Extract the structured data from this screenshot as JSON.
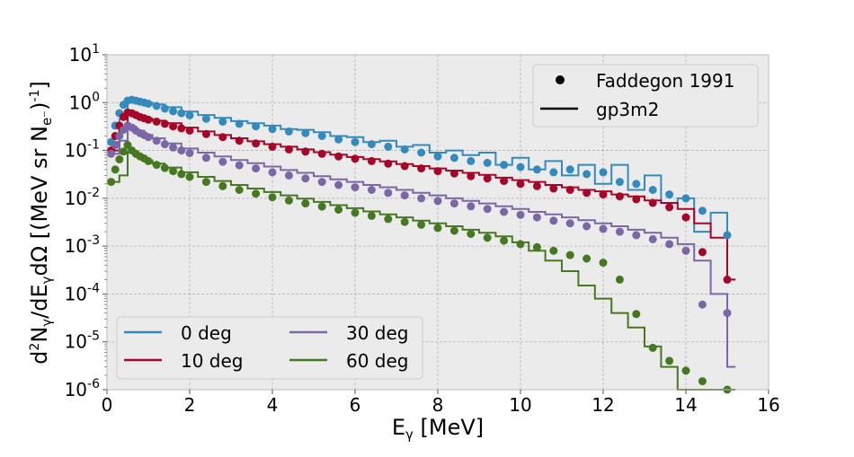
{
  "chart_data": {
    "type": "scatter",
    "xlabel": "E",
    "xlabel_sub": "γ",
    "xlabel_unit": " [MeV]",
    "ylabel_parts": [
      "d",
      "2",
      "N",
      "γ",
      "/dE",
      "γ",
      "dΩ  [(MeV sr N",
      "e⁻",
      ")",
      "-1",
      "]"
    ],
    "xlim": [
      0,
      16
    ],
    "ylim_log10": [
      -6,
      1
    ],
    "log_y": true,
    "grid": true,
    "x_ticks": [
      "0",
      "2",
      "4",
      "6",
      "8",
      "10",
      "12",
      "14",
      "16"
    ],
    "y_tick_base": "10",
    "y_tick_exponents": [
      "-6",
      "-5",
      "-4",
      "-3",
      "-2",
      "-1",
      "0",
      "1"
    ],
    "style_legend": {
      "placement": "top-right",
      "entries": [
        {
          "label": "Faddegon 1991",
          "marker": "dot"
        },
        {
          "label": "gp3m2",
          "marker": "line"
        }
      ]
    },
    "series_legend": {
      "placement": "bottom-left",
      "columns": 2,
      "entries": [
        "0 deg",
        "10 deg",
        "30 deg",
        "60 deg"
      ]
    },
    "series": [
      {
        "name": "0 deg",
        "color": "#348ABD",
        "measured": {
          "x": [
            0.1,
            0.2,
            0.3,
            0.4,
            0.5,
            0.6,
            0.7,
            0.8,
            0.9,
            1.0,
            1.2,
            1.4,
            1.6,
            1.8,
            2.0,
            2.4,
            2.8,
            3.2,
            3.6,
            4.0,
            4.4,
            4.8,
            5.2,
            5.6,
            6.0,
            6.4,
            6.8,
            7.2,
            7.6,
            8.0,
            8.4,
            8.8,
            9.2,
            9.6,
            10.0,
            10.4,
            10.8,
            11.2,
            11.6,
            12.0,
            12.4,
            12.8,
            13.2,
            13.6,
            14.0,
            14.4,
            15.0
          ],
          "y": [
            0.15,
            0.33,
            0.6,
            0.9,
            1.1,
            1.15,
            1.1,
            1.05,
            1.0,
            0.95,
            0.85,
            0.75,
            0.66,
            0.6,
            0.54,
            0.46,
            0.4,
            0.36,
            0.32,
            0.28,
            0.25,
            0.23,
            0.2,
            0.17,
            0.15,
            0.135,
            0.12,
            0.105,
            0.09,
            0.075,
            0.07,
            0.06,
            0.055,
            0.05,
            0.045,
            0.04,
            0.035,
            0.04,
            0.032,
            0.035,
            0.022,
            0.02,
            0.015,
            0.012,
            0.01,
            0.0055,
            0.0017
          ]
        },
        "simulated": {
          "x": [
            0.1,
            0.3,
            0.5,
            0.7,
            0.9,
            1.1,
            1.4,
            1.8,
            2.2,
            2.6,
            3.0,
            3.4,
            3.8,
            4.2,
            4.6,
            5.0,
            5.4,
            5.8,
            6.2,
            6.6,
            7.0,
            7.4,
            7.8,
            8.2,
            8.6,
            9.0,
            9.4,
            9.8,
            10.2,
            10.6,
            11.0,
            11.4,
            11.8,
            12.2,
            12.6,
            13.0,
            13.4,
            13.8,
            14.2,
            14.6,
            15.0
          ],
          "y": [
            0.15,
            0.45,
            1.15,
            1.1,
            1.0,
            0.92,
            0.8,
            0.65,
            0.55,
            0.48,
            0.41,
            0.37,
            0.33,
            0.28,
            0.27,
            0.24,
            0.2,
            0.19,
            0.15,
            0.16,
            0.12,
            0.13,
            0.09,
            0.1,
            0.08,
            0.09,
            0.05,
            0.07,
            0.04,
            0.06,
            0.03,
            0.05,
            0.02,
            0.05,
            0.015,
            0.03,
            0.008,
            0.01,
            0.002,
            0.005,
            0.0002
          ]
        }
      },
      {
        "name": "10 deg",
        "color": "#A60628",
        "measured": {
          "x": [
            0.1,
            0.2,
            0.3,
            0.4,
            0.5,
            0.6,
            0.7,
            0.8,
            0.9,
            1.0,
            1.2,
            1.4,
            1.6,
            1.8,
            2.0,
            2.4,
            2.8,
            3.2,
            3.6,
            4.0,
            4.4,
            4.8,
            5.2,
            5.6,
            6.0,
            6.4,
            6.8,
            7.2,
            7.6,
            8.0,
            8.4,
            8.8,
            9.2,
            9.6,
            10.0,
            10.4,
            10.8,
            11.2,
            11.6,
            12.0,
            12.4,
            12.8,
            13.2,
            13.6,
            14.0,
            14.4,
            15.0
          ],
          "y": [
            0.1,
            0.2,
            0.33,
            0.5,
            0.62,
            0.6,
            0.55,
            0.5,
            0.47,
            0.44,
            0.4,
            0.36,
            0.32,
            0.29,
            0.26,
            0.22,
            0.19,
            0.16,
            0.14,
            0.12,
            0.105,
            0.095,
            0.085,
            0.075,
            0.067,
            0.06,
            0.053,
            0.047,
            0.042,
            0.037,
            0.033,
            0.029,
            0.026,
            0.023,
            0.02,
            0.018,
            0.016,
            0.015,
            0.013,
            0.012,
            0.011,
            0.0095,
            0.008,
            0.0065,
            0.004,
            0.00075,
            0.0002
          ]
        },
        "simulated": {
          "x": [
            0.1,
            0.3,
            0.5,
            0.7,
            0.9,
            1.1,
            1.4,
            1.8,
            2.2,
            2.6,
            3.0,
            3.4,
            3.8,
            4.2,
            4.6,
            5.0,
            5.4,
            5.8,
            6.2,
            6.6,
            7.0,
            7.4,
            7.8,
            8.2,
            8.6,
            9.0,
            9.4,
            9.8,
            10.2,
            10.6,
            11.0,
            11.4,
            11.8,
            12.2,
            12.6,
            13.0,
            13.4,
            13.8,
            14.2,
            14.6,
            15.0
          ],
          "y": [
            0.1,
            0.3,
            0.6,
            0.52,
            0.46,
            0.42,
            0.37,
            0.3,
            0.25,
            0.21,
            0.18,
            0.155,
            0.135,
            0.12,
            0.105,
            0.092,
            0.082,
            0.073,
            0.066,
            0.059,
            0.052,
            0.047,
            0.042,
            0.038,
            0.034,
            0.031,
            0.027,
            0.024,
            0.022,
            0.019,
            0.017,
            0.015,
            0.014,
            0.012,
            0.011,
            0.009,
            0.008,
            0.006,
            0.003,
            0.0015,
            0.0002
          ]
        }
      },
      {
        "name": "30 deg",
        "color": "#7A68A6",
        "measured": {
          "x": [
            0.1,
            0.2,
            0.3,
            0.4,
            0.5,
            0.6,
            0.7,
            0.8,
            0.9,
            1.0,
            1.2,
            1.4,
            1.6,
            1.8,
            2.0,
            2.4,
            2.8,
            3.2,
            3.6,
            4.0,
            4.4,
            4.8,
            5.2,
            5.6,
            6.0,
            6.4,
            6.8,
            7.2,
            7.6,
            8.0,
            8.4,
            8.8,
            9.2,
            9.6,
            10.0,
            10.4,
            10.8,
            11.2,
            11.6,
            12.0,
            12.4,
            12.8,
            13.2,
            13.6,
            14.0,
            14.4,
            15.0
          ],
          "y": [
            0.085,
            0.13,
            0.2,
            0.27,
            0.33,
            0.3,
            0.26,
            0.23,
            0.21,
            0.19,
            0.16,
            0.135,
            0.115,
            0.1,
            0.088,
            0.07,
            0.058,
            0.049,
            0.042,
            0.035,
            0.03,
            0.026,
            0.022,
            0.019,
            0.017,
            0.015,
            0.013,
            0.0115,
            0.01,
            0.0088,
            0.0078,
            0.0068,
            0.006,
            0.0052,
            0.0045,
            0.004,
            0.0034,
            0.003,
            0.0026,
            0.0023,
            0.002,
            0.0017,
            0.0014,
            0.0011,
            0.0008,
            6e-05,
            4e-05
          ]
        },
        "simulated": {
          "x": [
            0.1,
            0.3,
            0.5,
            0.7,
            0.9,
            1.1,
            1.4,
            1.8,
            2.2,
            2.6,
            3.0,
            3.4,
            3.8,
            4.2,
            4.6,
            5.0,
            5.4,
            5.8,
            6.2,
            6.6,
            7.0,
            7.4,
            7.8,
            8.2,
            8.6,
            9.0,
            9.4,
            9.8,
            10.2,
            10.6,
            11.0,
            11.4,
            11.8,
            12.2,
            12.6,
            13.0,
            13.4,
            13.8,
            14.2,
            14.6,
            15.0
          ],
          "y": [
            0.085,
            0.16,
            0.32,
            0.26,
            0.21,
            0.18,
            0.14,
            0.11,
            0.09,
            0.075,
            0.063,
            0.054,
            0.046,
            0.039,
            0.034,
            0.029,
            0.025,
            0.022,
            0.019,
            0.017,
            0.015,
            0.013,
            0.0115,
            0.01,
            0.0088,
            0.0078,
            0.0068,
            0.006,
            0.0052,
            0.0046,
            0.004,
            0.0035,
            0.003,
            0.0026,
            0.0022,
            0.0019,
            0.0015,
            0.0011,
            0.0005,
            0.0001,
            3e-06
          ]
        }
      },
      {
        "name": "60 deg",
        "color": "#467821",
        "measured": {
          "x": [
            0.1,
            0.2,
            0.3,
            0.4,
            0.5,
            0.6,
            0.7,
            0.8,
            0.9,
            1.0,
            1.2,
            1.4,
            1.6,
            1.8,
            2.0,
            2.4,
            2.8,
            3.2,
            3.6,
            4.0,
            4.4,
            4.8,
            5.2,
            5.6,
            6.0,
            6.4,
            6.8,
            7.2,
            7.6,
            8.0,
            8.4,
            8.8,
            9.2,
            9.6,
            10.0,
            10.4,
            10.8,
            11.2,
            11.6,
            12.0,
            12.4,
            12.8,
            13.2,
            13.6,
            14.0,
            14.4,
            15.0
          ],
          "y": [
            0.022,
            0.04,
            0.065,
            0.095,
            0.13,
            0.1,
            0.085,
            0.075,
            0.068,
            0.06,
            0.05,
            0.043,
            0.037,
            0.032,
            0.028,
            0.022,
            0.018,
            0.015,
            0.0125,
            0.0105,
            0.009,
            0.0078,
            0.0067,
            0.0058,
            0.005,
            0.0043,
            0.0037,
            0.0032,
            0.0028,
            0.0024,
            0.0021,
            0.0018,
            0.0015,
            0.0013,
            0.0011,
            0.00095,
            0.0008,
            0.00065,
            0.00055,
            0.00045,
            0.0002,
            3.8e-05,
            7.5e-06,
            4e-06,
            2.5e-06,
            1.5e-06,
            1e-06
          ]
        },
        "simulated": {
          "x": [
            0.1,
            0.3,
            0.5,
            0.7,
            0.9,
            1.1,
            1.4,
            1.8,
            2.2,
            2.6,
            3.0,
            3.4,
            3.8,
            4.2,
            4.6,
            5.0,
            5.4,
            5.8,
            6.2,
            6.6,
            7.0,
            7.4,
            7.8,
            8.2,
            8.6,
            9.0,
            9.4,
            9.8,
            10.2,
            10.6,
            11.0,
            11.4,
            11.8,
            12.2,
            12.6,
            13.0,
            13.4,
            13.8,
            14.2,
            14.6,
            15.0
          ],
          "y": [
            0.022,
            0.03,
            0.09,
            0.075,
            0.062,
            0.053,
            0.044,
            0.035,
            0.028,
            0.023,
            0.019,
            0.016,
            0.0135,
            0.0115,
            0.0098,
            0.0084,
            0.0072,
            0.0062,
            0.0053,
            0.0046,
            0.004,
            0.0034,
            0.003,
            0.0026,
            0.0022,
            0.0019,
            0.0016,
            0.0012,
            0.0008,
            0.0005,
            0.0003,
            0.00015,
            8e-05,
            4e-05,
            2e-05,
            8e-06,
            3e-06,
            1e-06,
            1e-06,
            1e-06,
            1e-06
          ]
        }
      }
    ]
  }
}
